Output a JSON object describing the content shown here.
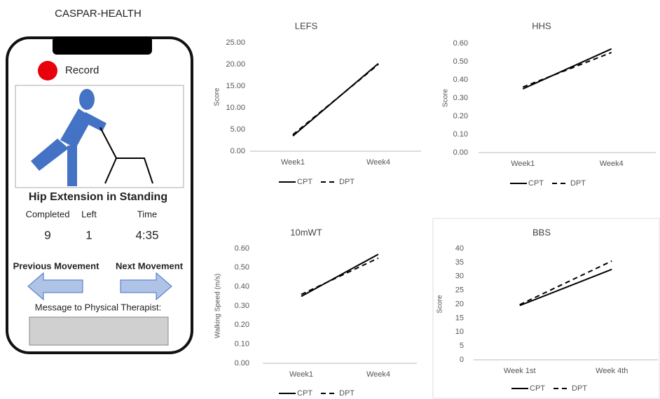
{
  "phone": {
    "title": "CASPAR-HEALTH",
    "record": "Record",
    "exercise": "Hip Extension in Standing",
    "stats": [
      {
        "label": "Completed",
        "value": 9
      },
      {
        "label": "Left",
        "value": 1
      },
      {
        "label": "Time",
        "value": "4:35"
      }
    ],
    "previous": "Previous Movement",
    "next": "Next Movement",
    "message": "Message to Physical Therapist:"
  },
  "chart_data": [
    {
      "type": "line",
      "title": "LEFS",
      "ylabel": "Score",
      "categories": [
        "Week1",
        "Week4"
      ],
      "series": [
        {
          "name": "CPT",
          "color": "#000000",
          "dash": false,
          "values": [
            3.5,
            20.2
          ]
        },
        {
          "name": "DPT",
          "color": "#000000",
          "dash": true,
          "values": [
            3.8,
            20.0
          ]
        }
      ],
      "ylim": [
        0,
        25
      ],
      "yticks": [
        {
          "value": 0,
          "label": "0.00"
        },
        {
          "value": 5,
          "label": "5.00"
        },
        {
          "value": 10,
          "label": "10.00"
        },
        {
          "value": 15,
          "label": "15.00"
        },
        {
          "value": 20,
          "label": "20.00"
        },
        {
          "value": 25,
          "label": "25.00"
        }
      ],
      "grid": false
    },
    {
      "type": "line",
      "title": "HHS",
      "ylabel": "Score",
      "categories": [
        "Week1",
        "Week4"
      ],
      "series": [
        {
          "name": "CPT",
          "color": "#000000",
          "dash": false,
          "values": [
            0.35,
            0.57
          ]
        },
        {
          "name": "DPT",
          "color": "#000000",
          "dash": true,
          "values": [
            0.36,
            0.55
          ]
        }
      ],
      "ylim": [
        0,
        0.6
      ],
      "yticks": [
        {
          "value": 0,
          "label": "0.00"
        },
        {
          "value": 0.1,
          "label": "0.10"
        },
        {
          "value": 0.2,
          "label": "0.20"
        },
        {
          "value": 0.3,
          "label": "0.30"
        },
        {
          "value": 0.4,
          "label": "0.40"
        },
        {
          "value": 0.5,
          "label": "0.50"
        },
        {
          "value": 0.6,
          "label": "0.60"
        }
      ],
      "grid": false
    },
    {
      "type": "line",
      "title": "10mWT",
      "ylabel": "Walking Speed (m/s)",
      "categories": [
        "Week1",
        "Week4"
      ],
      "series": [
        {
          "name": "CPT",
          "color": "#000000",
          "dash": false,
          "values": [
            0.35,
            0.57
          ]
        },
        {
          "name": "DPT",
          "color": "#000000",
          "dash": true,
          "values": [
            0.36,
            0.55
          ]
        }
      ],
      "ylim": [
        0,
        0.6
      ],
      "yticks": [
        {
          "value": 0,
          "label": "0.00"
        },
        {
          "value": 0.1,
          "label": "0.10"
        },
        {
          "value": 0.2,
          "label": "0.20"
        },
        {
          "value": 0.3,
          "label": "0.30"
        },
        {
          "value": 0.4,
          "label": "0.40"
        },
        {
          "value": 0.5,
          "label": "0.50"
        },
        {
          "value": 0.6,
          "label": "0.60"
        }
      ],
      "grid": false
    },
    {
      "type": "line",
      "title": "BBS",
      "ylabel": "Score",
      "categories": [
        "Week 1st",
        "Week 4th"
      ],
      "series": [
        {
          "name": "CPT",
          "color": "#000000",
          "dash": false,
          "values": [
            19.5,
            32.5
          ]
        },
        {
          "name": "DPT",
          "color": "#000000",
          "dash": true,
          "values": [
            19.8,
            35.5
          ]
        }
      ],
      "ylim": [
        0,
        40
      ],
      "yticks": [
        0,
        5,
        10,
        15,
        20,
        25,
        30,
        35,
        40
      ],
      "grid": false
    }
  ]
}
